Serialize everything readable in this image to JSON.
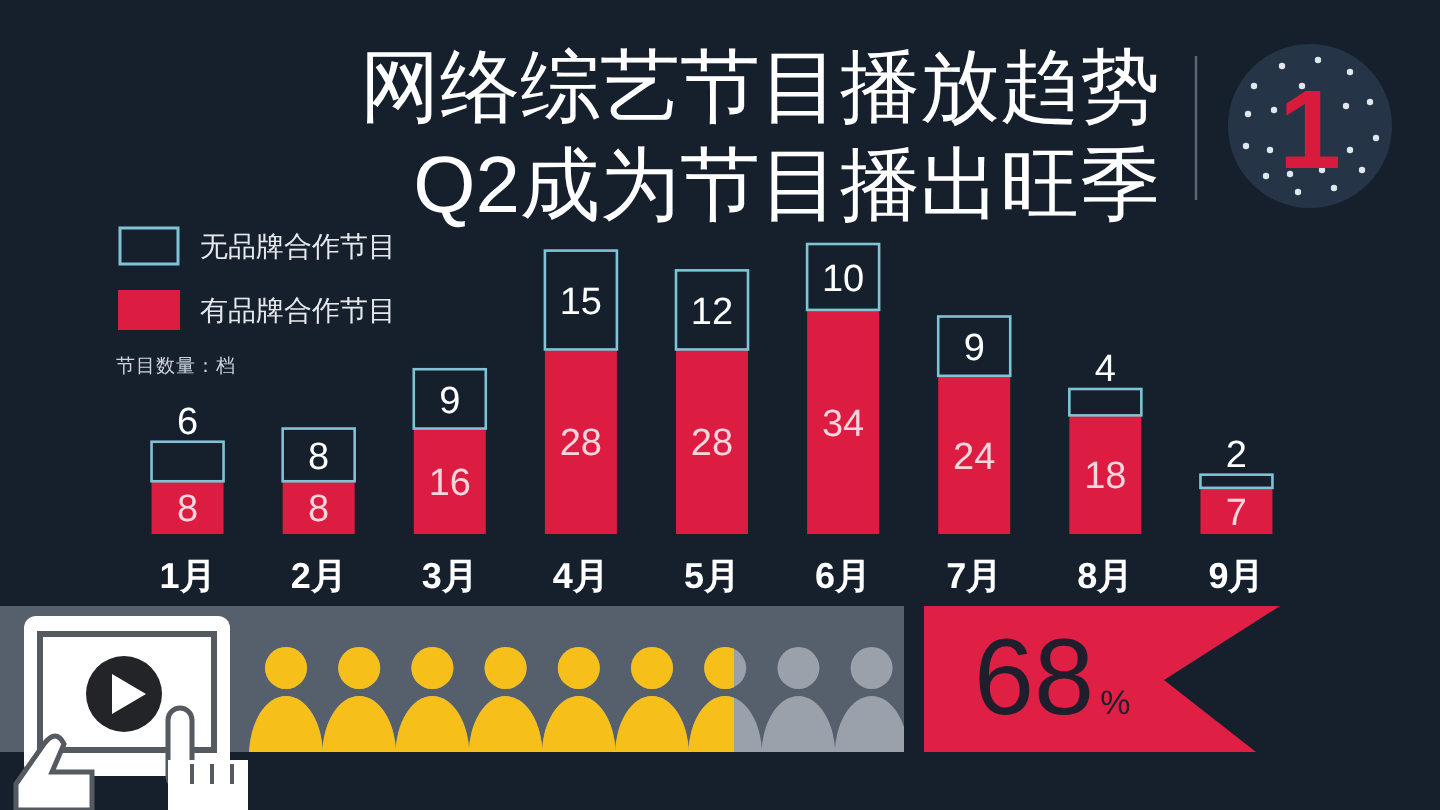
{
  "chart_data": {
    "type": "bar",
    "title": "网络综艺节目播放趋势",
    "subtitle": "Q2成为节目播出旺季",
    "categories": [
      "1月",
      "2月",
      "3月",
      "4月",
      "5月",
      "6月",
      "7月",
      "8月",
      "9月"
    ],
    "series": [
      {
        "name": "有品牌合作节目",
        "color": "#dc1c40",
        "values": [
          8,
          8,
          16,
          28,
          28,
          34,
          24,
          18,
          7
        ]
      },
      {
        "name": "无品牌合作节目",
        "color": "#7fc3d5",
        "values": [
          6,
          8,
          9,
          15,
          12,
          10,
          9,
          4,
          2
        ]
      }
    ],
    "stacked": true,
    "data_labels": true,
    "legend": "top left",
    "annotations": [
      "节目数量：档",
      "1",
      "68%"
    ]
  }
}
